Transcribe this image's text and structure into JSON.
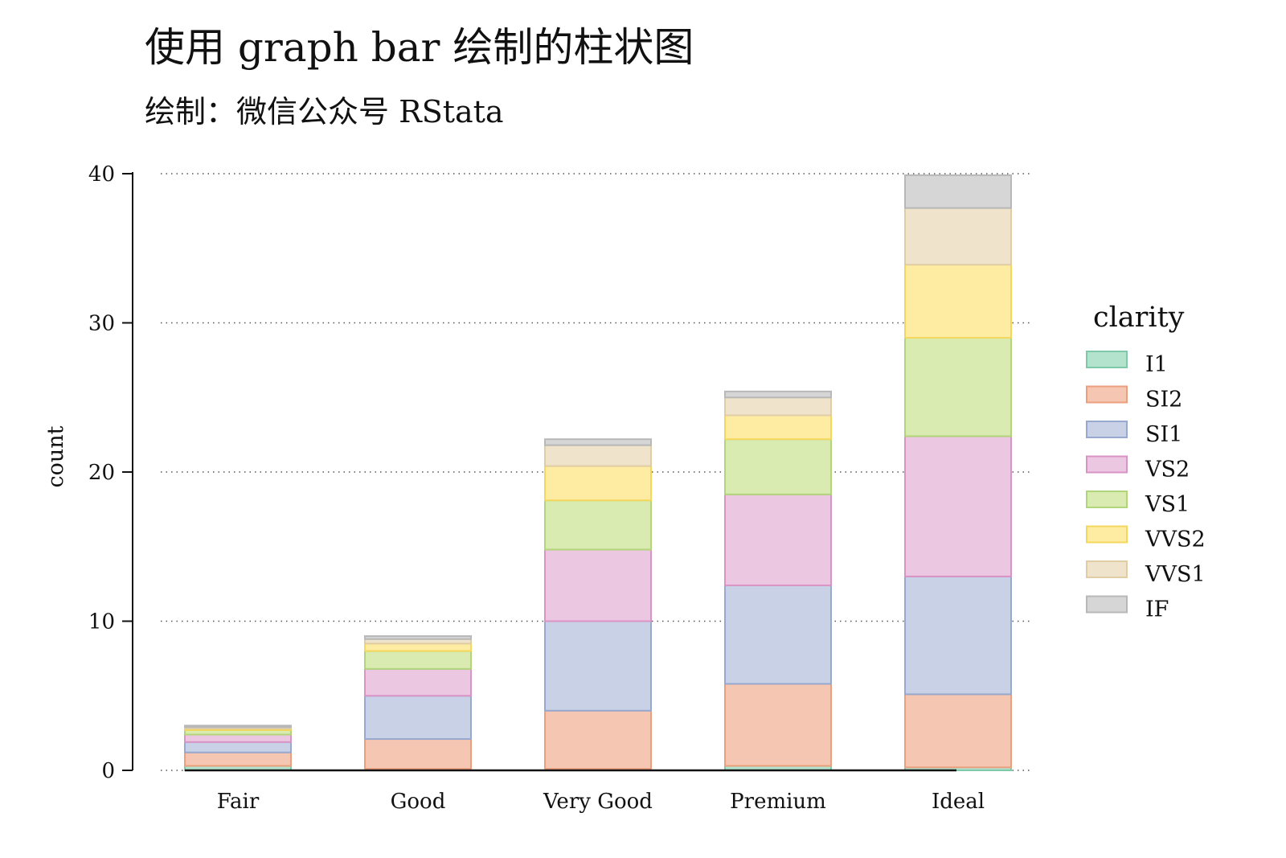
{
  "chart_data": {
    "type": "bar",
    "stacked": true,
    "title": "使用 graph bar 绘制的柱状图",
    "subtitle": "绘制：微信公众号 RStata",
    "xlabel": "",
    "ylabel": "count",
    "ylim": [
      0,
      40
    ],
    "yticks": [
      0,
      10,
      20,
      30,
      40
    ],
    "grid": "horizontal-dotted",
    "legend_title": "clarity",
    "legend_position": "right",
    "categories": [
      "Fair",
      "Good",
      "Very Good",
      "Premium",
      "Ideal"
    ],
    "series": [
      {
        "name": "I1",
        "color": "#b3e2cd",
        "edge": "#7fc8a9",
        "values": [
          0.3,
          0.1,
          0.1,
          0.3,
          0.2
        ]
      },
      {
        "name": "SI2",
        "color": "#f5c6b2",
        "edge": "#ec9f7e",
        "values": [
          0.9,
          2.0,
          3.9,
          5.5,
          4.9
        ]
      },
      {
        "name": "SI1",
        "color": "#c8d1e5",
        "edge": "#98a9d0",
        "values": [
          0.7,
          2.9,
          6.0,
          6.6,
          7.9
        ]
      },
      {
        "name": "VS2",
        "color": "#ecc7e1",
        "edge": "#da93c5",
        "values": [
          0.5,
          1.8,
          4.8,
          6.1,
          9.4
        ]
      },
      {
        "name": "VS1",
        "color": "#d9ebb0",
        "edge": "#b1d57a",
        "values": [
          0.3,
          1.2,
          3.3,
          3.7,
          6.6
        ]
      },
      {
        "name": "VVS2",
        "color": "#fdeca1",
        "edge": "#f4d75e",
        "values": [
          0.1,
          0.5,
          2.3,
          1.6,
          4.9
        ]
      },
      {
        "name": "VVS1",
        "color": "#efe3cc",
        "edge": "#e0cda6",
        "values": [
          0.1,
          0.3,
          1.4,
          1.2,
          3.8
        ]
      },
      {
        "name": "IF",
        "color": "#d6d6d6",
        "edge": "#b8b8b8",
        "values": [
          0.1,
          0.2,
          0.4,
          0.4,
          2.2
        ]
      }
    ]
  }
}
